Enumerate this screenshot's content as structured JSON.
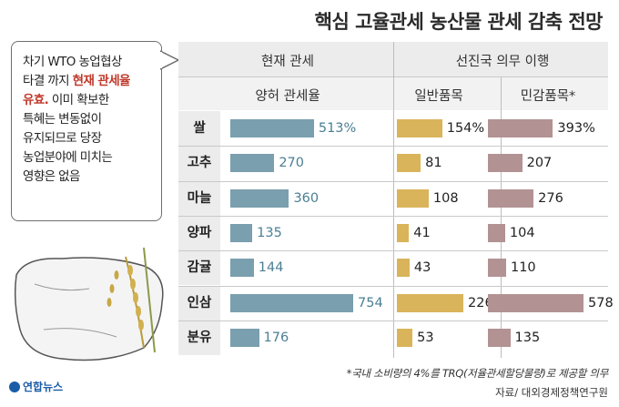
{
  "title": "핵심 고율관세 농산물 관세 감축 전망",
  "callout": {
    "line1": "차기 WTO 농업협상",
    "line2a": "타결 까지 ",
    "line2b": "현재 관세율",
    "line3a": "유효.",
    "line3b": " 이미 확보한",
    "line4": "특혜는 변동없이",
    "line5": "유지되므로 당장",
    "line6": "농업분야에 미치는",
    "line7": "영향은 없음"
  },
  "headers": {
    "current": "현재 관세",
    "advanced": "선진국 의무 이행",
    "allowed": "양허 관세율",
    "general": "일반품목",
    "sensitive": "민감품목*"
  },
  "footnote": "*국내 소비량의 4%를 TRQ(저율관세할당물량)로 제공할 의무",
  "source": "자료/ 대외경제정책연구원",
  "logo": "연합뉴스",
  "colors": {
    "current": "#7a9fae",
    "general": "#d9b45a",
    "sensitive": "#b29293"
  },
  "chart_data": {
    "type": "bar",
    "orientation": "horizontal",
    "categories": [
      "쌀",
      "고추",
      "마늘",
      "양파",
      "감귤",
      "인삼",
      "분유"
    ],
    "series": [
      {
        "name": "양허 관세율",
        "values": [
          513,
          270,
          360,
          135,
          144,
          754,
          176
        ],
        "labels": [
          "513%",
          "270",
          "360",
          "135",
          "144",
          "754",
          "176"
        ]
      },
      {
        "name": "일반품목",
        "values": [
          154,
          81,
          108,
          41,
          43,
          226,
          53
        ],
        "labels": [
          "154%",
          "81",
          "108",
          "41",
          "43",
          "226",
          "53"
        ]
      },
      {
        "name": "민감품목*",
        "values": [
          393,
          207,
          276,
          104,
          110,
          578,
          135
        ],
        "labels": [
          "393%",
          "207",
          "276",
          "104",
          "110",
          "578",
          "135"
        ]
      }
    ]
  }
}
